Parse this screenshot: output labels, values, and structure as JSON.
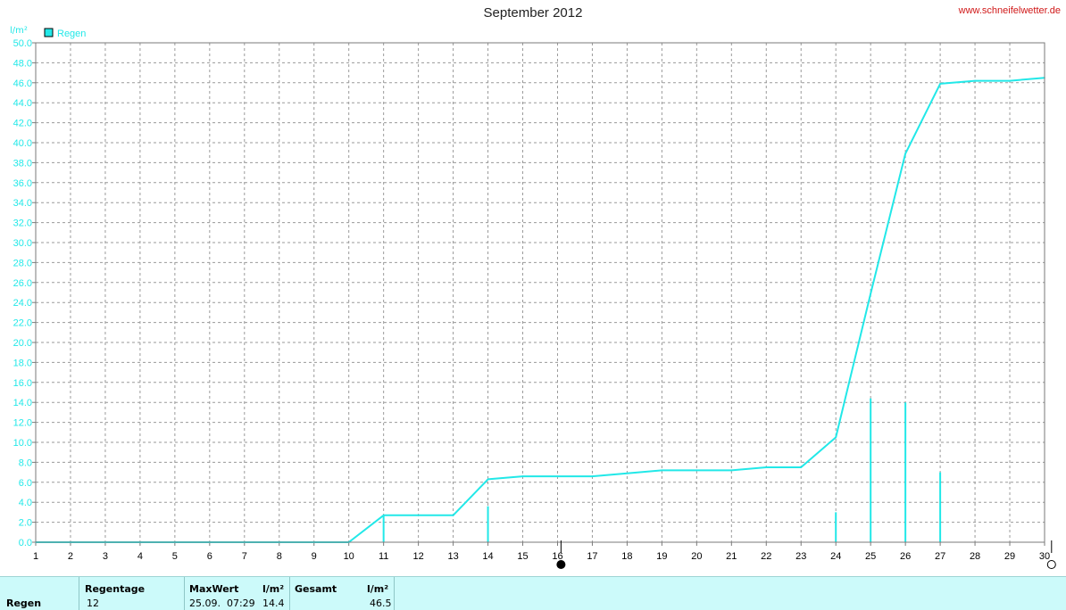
{
  "header": {
    "title": "September 2012",
    "site": "www.schneifelwetter.de"
  },
  "colors": {
    "series": "#22e8e8",
    "grid": "#9a9a9a",
    "axis": "#7a7a7a",
    "tick_label": "#22e8e8",
    "panel_bg": "#ccfafa"
  },
  "chart_data": {
    "type": "line",
    "title": "September 2012",
    "ylabel": "l/m²",
    "xlim": [
      1,
      30
    ],
    "ylim": [
      0,
      50
    ],
    "y_ticks": [
      "0.0",
      "2.0",
      "4.0",
      "6.0",
      "8.0",
      "10.0",
      "12.0",
      "14.0",
      "16.0",
      "18.0",
      "20.0",
      "22.0",
      "24.0",
      "26.0",
      "28.0",
      "30.0",
      "32.0",
      "34.0",
      "36.0",
      "38.0",
      "40.0",
      "42.0",
      "44.0",
      "46.0",
      "48.0",
      "50.0"
    ],
    "x_ticks": [
      "1",
      "2",
      "3",
      "4",
      "5",
      "6",
      "7",
      "8",
      "9",
      "10",
      "11",
      "12",
      "13",
      "14",
      "15",
      "16",
      "17",
      "18",
      "19",
      "20",
      "21",
      "22",
      "23",
      "24",
      "25",
      "26",
      "27",
      "28",
      "29",
      "30"
    ],
    "grid": true,
    "legend": {
      "position": "top-left",
      "entries": [
        "Regen"
      ]
    },
    "series": [
      {
        "name": "Regen",
        "kind": "cumulative-line",
        "points": [
          [
            1,
            0
          ],
          [
            10,
            0
          ],
          [
            11,
            2.7
          ],
          [
            13,
            2.7
          ],
          [
            14,
            6.3
          ],
          [
            15,
            6.6
          ],
          [
            17,
            6.6
          ],
          [
            19,
            7.2
          ],
          [
            21,
            7.2
          ],
          [
            22,
            7.5
          ],
          [
            23,
            7.5
          ],
          [
            24,
            10.5
          ],
          [
            25,
            24.9
          ],
          [
            26,
            38.9
          ],
          [
            27,
            45.9
          ],
          [
            28,
            46.2
          ],
          [
            29,
            46.2
          ],
          [
            30,
            46.5
          ]
        ]
      },
      {
        "name": "Regen",
        "kind": "daily-bars",
        "points": [
          [
            11,
            2.7
          ],
          [
            14,
            3.6
          ],
          [
            24,
            3.0
          ],
          [
            25,
            14.4
          ],
          [
            26,
            14.0
          ],
          [
            27,
            7.0
          ]
        ]
      }
    ],
    "annotations": [
      {
        "type": "full-moon-symbol",
        "x": 16.1
      },
      {
        "type": "new-moon-symbol",
        "x": 30.2
      }
    ]
  },
  "stats": {
    "row_label": "Regen",
    "regentage_header": "Regentage",
    "regentage_value": "12",
    "maxwert_header": "MaxWert",
    "maxwert_datetime": "25.09.  07:29",
    "maxwert_unit_header": "l/m²",
    "maxwert_value": "14.4",
    "gesamt_header": "Gesamt",
    "gesamt_unit_header": "l/m²",
    "gesamt_value": "46.5"
  }
}
